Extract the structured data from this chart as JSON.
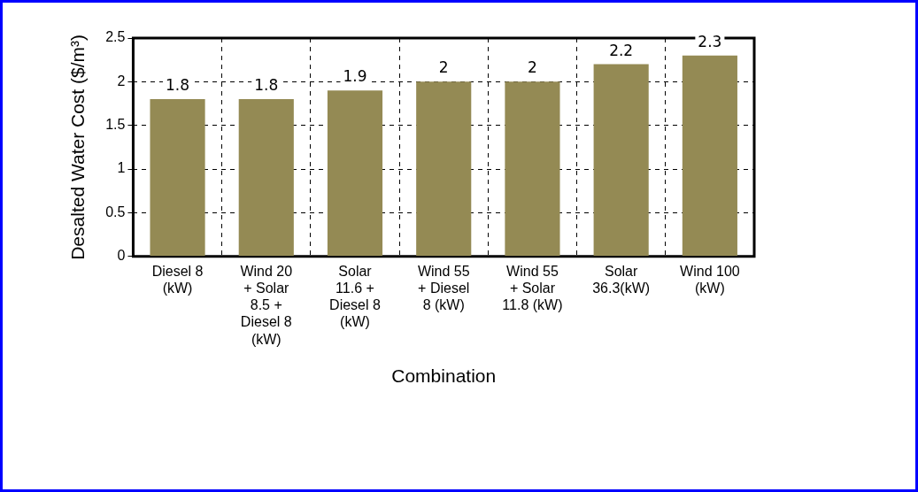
{
  "chart_data": {
    "type": "bar",
    "xlabel": "Combination",
    "ylabel": "Desalted Water Cost ($/m³)",
    "categories": [
      "Diesel 8 (kW)",
      "Wind 20 + Solar 8.5 + Diesel 8 (kW)",
      "Solar 11.6 + Diesel 8 (kW)",
      "Wind 55 + Diesel 8 (kW)",
      "Wind 55 + Solar 11.8 (kW)",
      "Solar 36.3(kW)",
      "Wind 100 (kW)"
    ],
    "values": [
      1.8,
      1.8,
      1.9,
      2,
      2,
      2.2,
      2.3
    ],
    "color": "#948a54",
    "ylim": [
      0,
      2.5
    ],
    "yticks": [
      0,
      0.5,
      1,
      1.5,
      2,
      2.5
    ],
    "grid": true,
    "legend": false,
    "data_labels": true
  }
}
